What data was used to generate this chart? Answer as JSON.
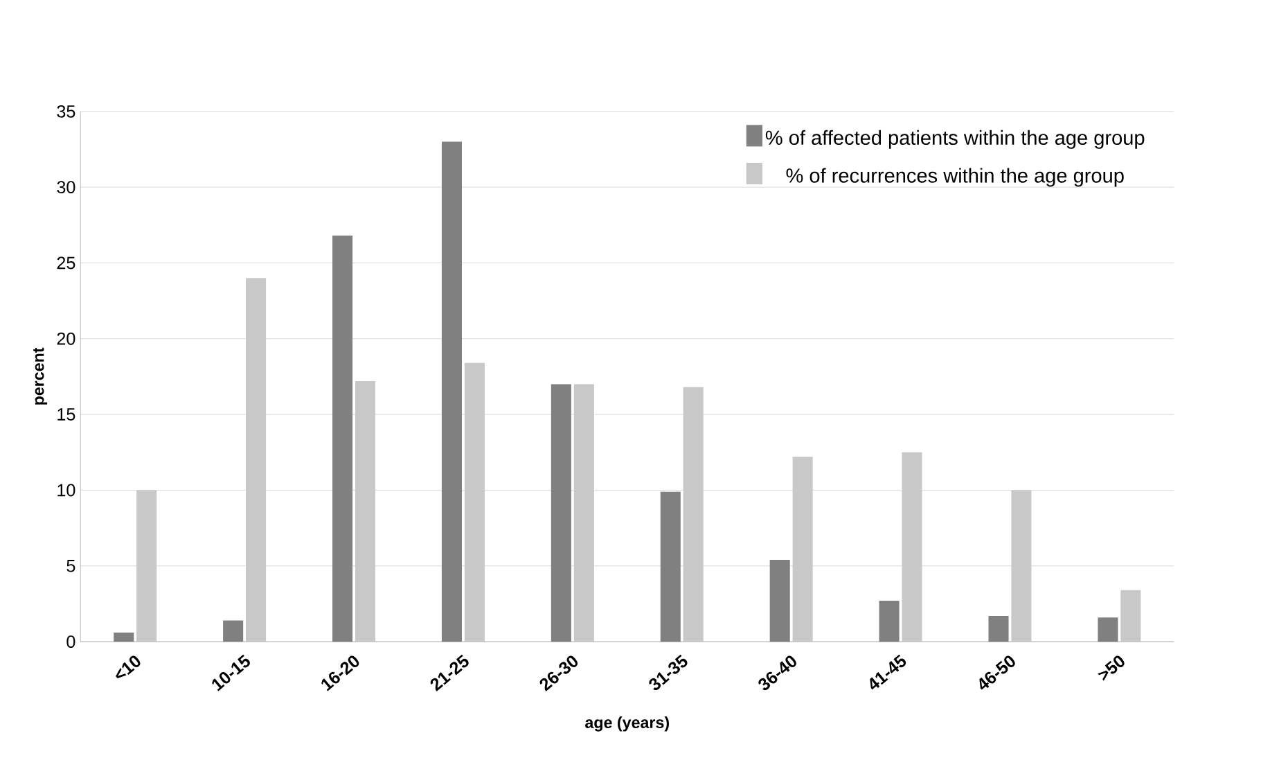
{
  "chart_data": {
    "type": "bar",
    "xlabel": "age (years)",
    "ylabel": "percent",
    "categories": [
      "<10",
      "10-15",
      "16-20",
      "21-25",
      "26-30",
      "31-35",
      "36-40",
      "41-45",
      "46-50",
      ">50"
    ],
    "series": [
      {
        "name": "% of affected patients within the age group",
        "color": "#808080",
        "values": [
          0.6,
          1.4,
          26.8,
          33.0,
          17.0,
          9.9,
          5.4,
          2.7,
          1.7,
          1.6
        ]
      },
      {
        "name": "% of recurrences within the age group",
        "color": "#c8c8c8",
        "values": [
          10.0,
          24.0,
          17.2,
          18.4,
          17.0,
          16.8,
          12.2,
          12.5,
          10.0,
          3.4
        ]
      }
    ],
    "ylim": [
      0,
      35
    ],
    "yticks": [
      0,
      5,
      10,
      15,
      20,
      25,
      30,
      35
    ],
    "grid": "y",
    "legend": "top right"
  }
}
